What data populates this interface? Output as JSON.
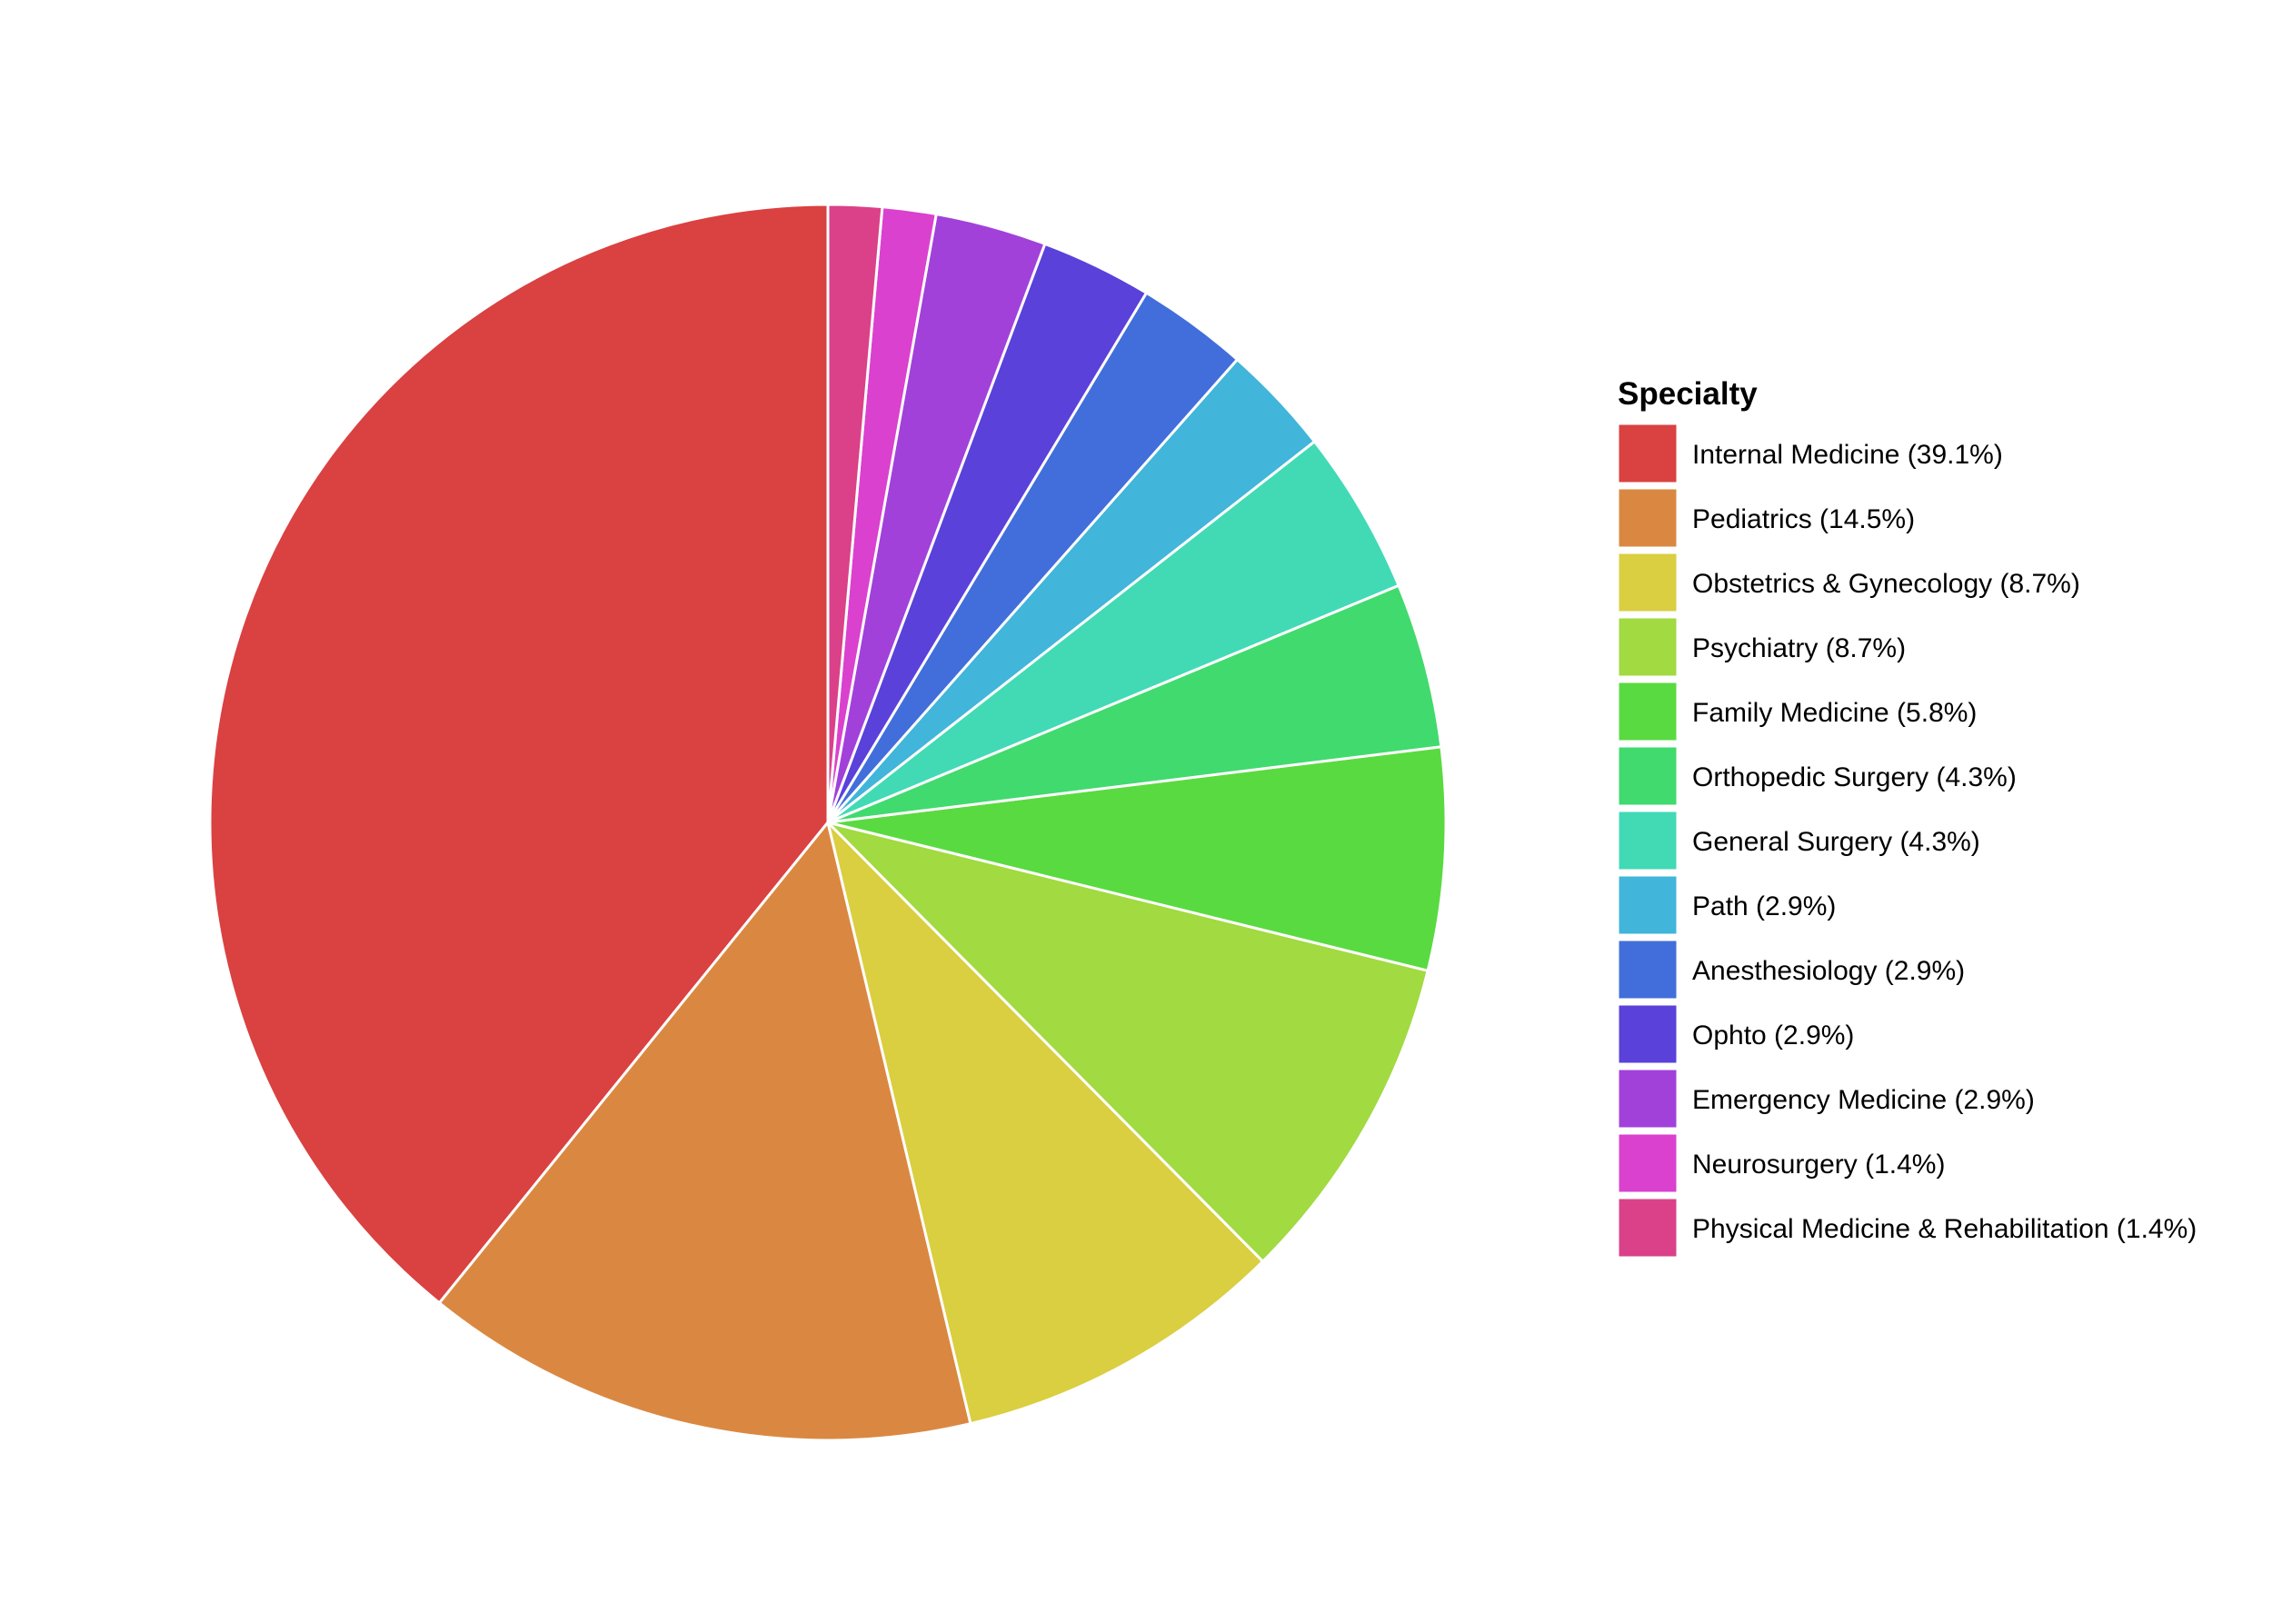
{
  "chart_data": {
    "type": "pie",
    "title": "",
    "legend": {
      "title": "Specialty",
      "position": "right"
    },
    "slices": [
      {
        "label": "Internal Medicine (39.1%)",
        "category": "Internal Medicine",
        "value": 39.1,
        "color": "#DA4141"
      },
      {
        "label": "Pediatrics (14.5%)",
        "category": "Pediatrics",
        "value": 14.5,
        "color": "#DA8841"
      },
      {
        "label": "Obstetrics & Gynecology (8.7%)",
        "category": "Obstetrics & Gynecology",
        "value": 8.7,
        "color": "#DACE41"
      },
      {
        "label": "Psychiatry (8.7%)",
        "category": "Psychiatry",
        "value": 8.7,
        "color": "#A1DA41"
      },
      {
        "label": "Family Medicine (5.8%)",
        "category": "Family Medicine",
        "value": 5.8,
        "color": "#5ADA41"
      },
      {
        "label": "Orthopedic Surgery (4.3%)",
        "category": "Orthopedic Surgery",
        "value": 4.3,
        "color": "#41DA6E"
      },
      {
        "label": "General Surgery (4.3%)",
        "category": "General Surgery",
        "value": 4.3,
        "color": "#41DAB5"
      },
      {
        "label": "Path (2.9%)",
        "category": "Path",
        "value": 2.9,
        "color": "#41B5DA"
      },
      {
        "label": "Anesthesiology (2.9%)",
        "category": "Anesthesiology",
        "value": 2.9,
        "color": "#416EDA"
      },
      {
        "label": "Ophto (2.9%)",
        "category": "Ophto",
        "value": 2.9,
        "color": "#5A41DA"
      },
      {
        "label": "Emergency Medicine (2.9%)",
        "category": "Emergency Medicine",
        "value": 2.9,
        "color": "#A141DA"
      },
      {
        "label": "Neurosurgery (1.4%)",
        "category": "Neurosurgery",
        "value": 1.4,
        "color": "#DA41CE"
      },
      {
        "label": "Physical Medicine & Rehabilitation (1.4%)",
        "category": "Physical Medicine & Rehabilitation",
        "value": 1.4,
        "color": "#DA4188"
      }
    ]
  }
}
